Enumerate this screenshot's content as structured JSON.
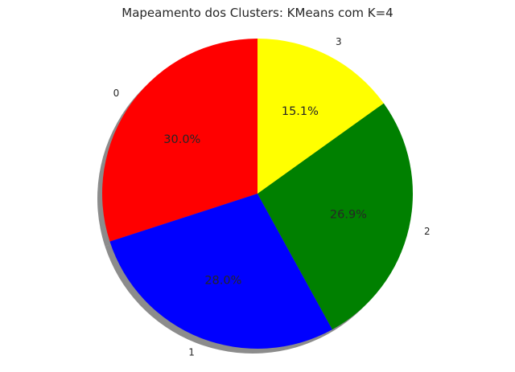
{
  "chart_data": {
    "type": "pie",
    "title": "Mapeamento dos Clusters: KMeans com K=4",
    "start_angle_deg": 90,
    "direction": "counterclockwise",
    "shadow": true,
    "slices": [
      {
        "label": "0",
        "value": 30.0,
        "pct_label": "30.0%",
        "color": "#ff0000"
      },
      {
        "label": "1",
        "value": 28.0,
        "pct_label": "28.0%",
        "color": "#0000ff"
      },
      {
        "label": "2",
        "value": 26.9,
        "pct_label": "26.9%",
        "color": "#008000"
      },
      {
        "label": "3",
        "value": 15.1,
        "pct_label": "15.1%",
        "color": "#ffff00"
      }
    ]
  }
}
